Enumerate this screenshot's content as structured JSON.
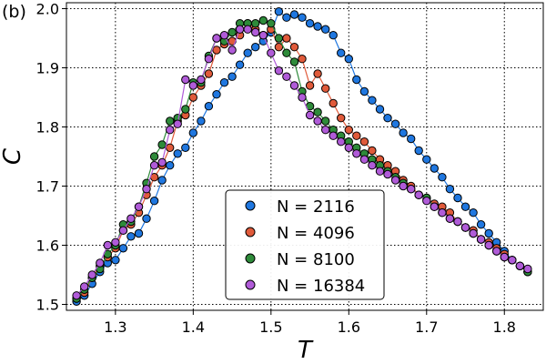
{
  "panel_label": "(b)",
  "chart_data": {
    "type": "line",
    "title": "",
    "xlabel": "T",
    "ylabel": "C",
    "xlim": [
      1.237,
      1.85
    ],
    "ylim": [
      1.49,
      2.01
    ],
    "xticks": [
      "1.3",
      "1.4",
      "1.5",
      "1.6",
      "1.7",
      "1.8"
    ],
    "yticks": [
      "1.5",
      "1.6",
      "1.7",
      "1.8",
      "1.9",
      "2.0"
    ],
    "grid": "dotted",
    "legend_position": "bottom-center",
    "series": [
      {
        "name": "N = 2116",
        "color": "#1f77e0",
        "points": [
          [
            1.25,
            1.505
          ],
          [
            1.26,
            1.515
          ],
          [
            1.27,
            1.535
          ],
          [
            1.28,
            1.555
          ],
          [
            1.29,
            1.57
          ],
          [
            1.3,
            1.575
          ],
          [
            1.31,
            1.595
          ],
          [
            1.32,
            1.615
          ],
          [
            1.33,
            1.62
          ],
          [
            1.34,
            1.645
          ],
          [
            1.35,
            1.675
          ],
          [
            1.36,
            1.71
          ],
          [
            1.37,
            1.735
          ],
          [
            1.38,
            1.755
          ],
          [
            1.39,
            1.765
          ],
          [
            1.4,
            1.79
          ],
          [
            1.41,
            1.81
          ],
          [
            1.42,
            1.835
          ],
          [
            1.43,
            1.855
          ],
          [
            1.44,
            1.875
          ],
          [
            1.45,
            1.885
          ],
          [
            1.46,
            1.905
          ],
          [
            1.47,
            1.925
          ],
          [
            1.48,
            1.935
          ],
          [
            1.49,
            1.945
          ],
          [
            1.5,
            1.96
          ],
          [
            1.51,
            1.995
          ],
          [
            1.52,
            1.985
          ],
          [
            1.53,
            1.99
          ],
          [
            1.54,
            1.985
          ],
          [
            1.55,
            1.975
          ],
          [
            1.56,
            1.97
          ],
          [
            1.57,
            1.965
          ],
          [
            1.58,
            1.955
          ],
          [
            1.59,
            1.925
          ],
          [
            1.6,
            1.915
          ],
          [
            1.61,
            1.88
          ],
          [
            1.62,
            1.86
          ],
          [
            1.63,
            1.845
          ],
          [
            1.64,
            1.83
          ],
          [
            1.65,
            1.815
          ],
          [
            1.66,
            1.805
          ],
          [
            1.67,
            1.79
          ],
          [
            1.68,
            1.78
          ],
          [
            1.69,
            1.76
          ],
          [
            1.7,
            1.745
          ],
          [
            1.71,
            1.73
          ],
          [
            1.72,
            1.715
          ],
          [
            1.73,
            1.695
          ],
          [
            1.74,
            1.68
          ],
          [
            1.75,
            1.665
          ],
          [
            1.76,
            1.655
          ],
          [
            1.77,
            1.635
          ],
          [
            1.78,
            1.62
          ],
          [
            1.79,
            1.605
          ],
          [
            1.8,
            1.59
          ],
          [
            1.81,
            1.575
          ],
          [
            1.82,
            1.565
          ],
          [
            1.83,
            1.555
          ]
        ]
      },
      {
        "name": "N = 4096",
        "color": "#e05a3a",
        "points": [
          [
            1.25,
            1.51
          ],
          [
            1.26,
            1.52
          ],
          [
            1.27,
            1.545
          ],
          [
            1.28,
            1.565
          ],
          [
            1.29,
            1.58
          ],
          [
            1.3,
            1.595
          ],
          [
            1.31,
            1.625
          ],
          [
            1.32,
            1.635
          ],
          [
            1.33,
            1.655
          ],
          [
            1.34,
            1.685
          ],
          [
            1.35,
            1.715
          ],
          [
            1.36,
            1.735
          ],
          [
            1.37,
            1.765
          ],
          [
            1.38,
            1.81
          ],
          [
            1.39,
            1.82
          ],
          [
            1.4,
            1.85
          ],
          [
            1.41,
            1.87
          ],
          [
            1.42,
            1.89
          ],
          [
            1.43,
            1.93
          ],
          [
            1.44,
            1.94
          ],
          [
            1.45,
            1.945
          ],
          [
            1.46,
            1.955
          ],
          [
            1.47,
            1.975
          ],
          [
            1.48,
            1.965
          ],
          [
            1.49,
            1.955
          ],
          [
            1.5,
            1.965
          ],
          [
            1.51,
            1.935
          ],
          [
            1.52,
            1.95
          ],
          [
            1.53,
            1.935
          ],
          [
            1.54,
            1.915
          ],
          [
            1.55,
            1.87
          ],
          [
            1.56,
            1.89
          ],
          [
            1.57,
            1.865
          ],
          [
            1.58,
            1.84
          ],
          [
            1.59,
            1.815
          ],
          [
            1.6,
            1.795
          ],
          [
            1.61,
            1.785
          ],
          [
            1.62,
            1.775
          ],
          [
            1.63,
            1.76
          ],
          [
            1.64,
            1.745
          ],
          [
            1.65,
            1.735
          ],
          [
            1.66,
            1.725
          ],
          [
            1.67,
            1.71
          ],
          [
            1.68,
            1.7
          ],
          [
            1.69,
            1.685
          ],
          [
            1.7,
            1.68
          ],
          [
            1.71,
            1.67
          ],
          [
            1.72,
            1.665
          ],
          [
            1.73,
            1.655
          ],
          [
            1.74,
            1.64
          ],
          [
            1.75,
            1.63
          ],
          [
            1.76,
            1.625
          ],
          [
            1.77,
            1.61
          ],
          [
            1.78,
            1.605
          ],
          [
            1.79,
            1.595
          ],
          [
            1.8,
            1.585
          ],
          [
            1.81,
            1.575
          ],
          [
            1.82,
            1.565
          ],
          [
            1.83,
            1.555
          ]
        ]
      },
      {
        "name": "N = 8100",
        "color": "#2e8b3a",
        "points": [
          [
            1.25,
            1.51
          ],
          [
            1.26,
            1.525
          ],
          [
            1.27,
            1.545
          ],
          [
            1.28,
            1.56
          ],
          [
            1.29,
            1.585
          ],
          [
            1.3,
            1.6
          ],
          [
            1.31,
            1.635
          ],
          [
            1.32,
            1.64
          ],
          [
            1.33,
            1.665
          ],
          [
            1.34,
            1.705
          ],
          [
            1.35,
            1.75
          ],
          [
            1.36,
            1.77
          ],
          [
            1.37,
            1.81
          ],
          [
            1.38,
            1.815
          ],
          [
            1.39,
            1.83
          ],
          [
            1.4,
            1.875
          ],
          [
            1.41,
            1.875
          ],
          [
            1.42,
            1.92
          ],
          [
            1.43,
            1.95
          ],
          [
            1.44,
            1.945
          ],
          [
            1.45,
            1.96
          ],
          [
            1.46,
            1.975
          ],
          [
            1.47,
            1.975
          ],
          [
            1.48,
            1.975
          ],
          [
            1.49,
            1.98
          ],
          [
            1.5,
            1.975
          ],
          [
            1.51,
            1.95
          ],
          [
            1.52,
            1.925
          ],
          [
            1.53,
            1.91
          ],
          [
            1.54,
            1.86
          ],
          [
            1.55,
            1.835
          ],
          [
            1.56,
            1.825
          ],
          [
            1.57,
            1.81
          ],
          [
            1.58,
            1.795
          ],
          [
            1.59,
            1.785
          ],
          [
            1.6,
            1.775
          ],
          [
            1.61,
            1.765
          ],
          [
            1.62,
            1.755
          ],
          [
            1.63,
            1.745
          ],
          [
            1.64,
            1.735
          ],
          [
            1.65,
            1.725
          ],
          [
            1.66,
            1.715
          ],
          [
            1.67,
            1.705
          ],
          [
            1.68,
            1.695
          ],
          [
            1.69,
            1.685
          ],
          [
            1.7,
            1.68
          ],
          [
            1.71,
            1.665
          ],
          [
            1.72,
            1.655
          ],
          [
            1.73,
            1.645
          ],
          [
            1.74,
            1.64
          ],
          [
            1.75,
            1.63
          ],
          [
            1.76,
            1.62
          ],
          [
            1.77,
            1.61
          ],
          [
            1.78,
            1.6
          ],
          [
            1.79,
            1.59
          ],
          [
            1.8,
            1.58
          ],
          [
            1.81,
            1.575
          ],
          [
            1.82,
            1.565
          ],
          [
            1.83,
            1.555
          ]
        ]
      },
      {
        "name": "N = 16384",
        "color": "#b05bd8",
        "points": [
          [
            1.25,
            1.515
          ],
          [
            1.26,
            1.53
          ],
          [
            1.27,
            1.55
          ],
          [
            1.28,
            1.57
          ],
          [
            1.29,
            1.6
          ],
          [
            1.3,
            1.605
          ],
          [
            1.31,
            1.625
          ],
          [
            1.32,
            1.645
          ],
          [
            1.33,
            1.665
          ],
          [
            1.34,
            1.695
          ],
          [
            1.35,
            1.735
          ],
          [
            1.36,
            1.74
          ],
          [
            1.37,
            1.795
          ],
          [
            1.38,
            1.805
          ],
          [
            1.39,
            1.88
          ],
          [
            1.4,
            1.87
          ],
          [
            1.41,
            1.88
          ],
          [
            1.42,
            1.915
          ],
          [
            1.43,
            1.95
          ],
          [
            1.44,
            1.955
          ],
          [
            1.45,
            1.93
          ],
          [
            1.46,
            1.965
          ],
          [
            1.47,
            1.965
          ],
          [
            1.48,
            1.96
          ],
          [
            1.49,
            1.955
          ],
          [
            1.5,
            1.925
          ],
          [
            1.51,
            1.895
          ],
          [
            1.52,
            1.885
          ],
          [
            1.53,
            1.87
          ],
          [
            1.54,
            1.85
          ],
          [
            1.55,
            1.82
          ],
          [
            1.56,
            1.81
          ],
          [
            1.57,
            1.795
          ],
          [
            1.58,
            1.785
          ],
          [
            1.59,
            1.775
          ],
          [
            1.6,
            1.765
          ],
          [
            1.61,
            1.755
          ],
          [
            1.62,
            1.745
          ],
          [
            1.63,
            1.735
          ],
          [
            1.64,
            1.725
          ],
          [
            1.65,
            1.72
          ],
          [
            1.66,
            1.71
          ],
          [
            1.67,
            1.7
          ],
          [
            1.68,
            1.695
          ],
          [
            1.69,
            1.685
          ],
          [
            1.7,
            1.675
          ],
          [
            1.71,
            1.665
          ],
          [
            1.72,
            1.655
          ],
          [
            1.73,
            1.645
          ],
          [
            1.74,
            1.64
          ],
          [
            1.75,
            1.63
          ],
          [
            1.76,
            1.62
          ],
          [
            1.77,
            1.61
          ],
          [
            1.78,
            1.6
          ],
          [
            1.79,
            1.59
          ],
          [
            1.8,
            1.58
          ],
          [
            1.81,
            1.575
          ],
          [
            1.82,
            1.565
          ],
          [
            1.83,
            1.56
          ]
        ]
      }
    ]
  }
}
